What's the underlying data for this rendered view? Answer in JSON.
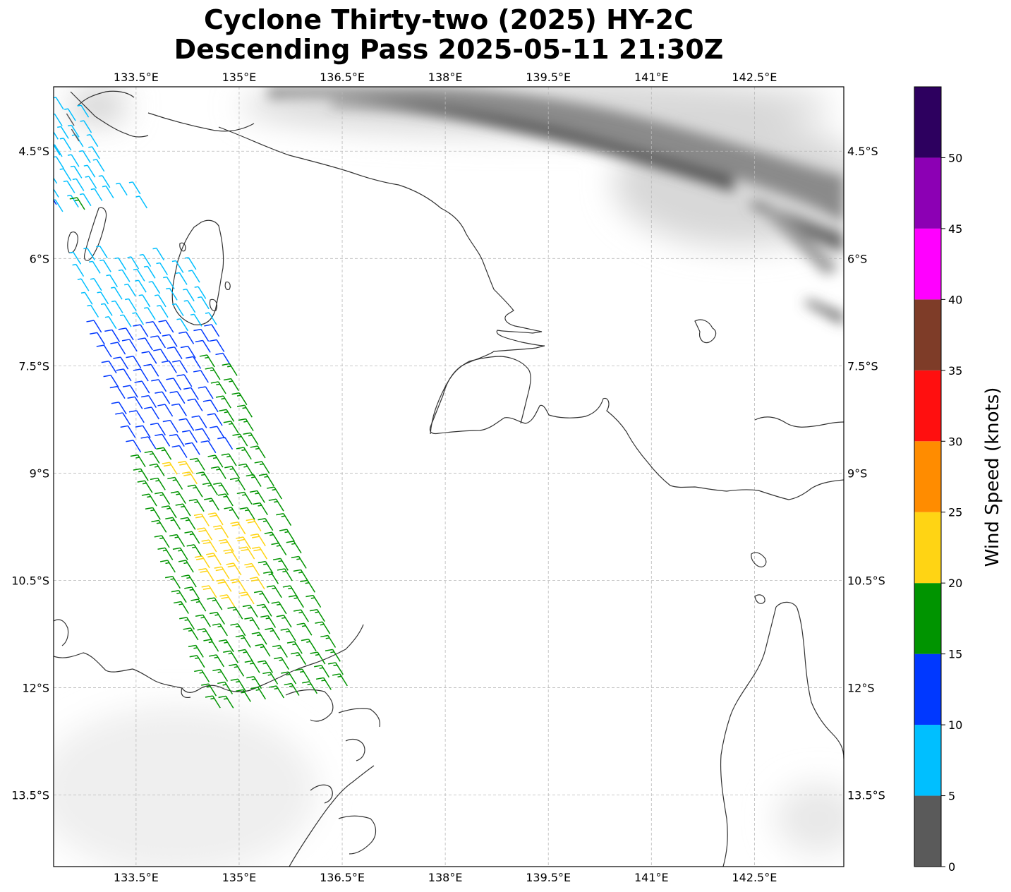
{
  "title": {
    "line1": "Cyclone Thirty-two (2025) HY-2C",
    "line2": "Descending Pass 2025-05-11 21:30Z"
  },
  "map": {
    "lon_range": [
      132.3,
      143.8
    ],
    "lat_range": [
      -14.5,
      -3.6
    ],
    "lon_ticks": [
      {
        "value": 133.5,
        "label": "133.5°E"
      },
      {
        "value": 135.0,
        "label": "135°E"
      },
      {
        "value": 136.5,
        "label": "136.5°E"
      },
      {
        "value": 138.0,
        "label": "138°E"
      },
      {
        "value": 139.5,
        "label": "139.5°E"
      },
      {
        "value": 141.0,
        "label": "141°E"
      },
      {
        "value": 142.5,
        "label": "142.5°E"
      }
    ],
    "lat_ticks": [
      {
        "value": -4.5,
        "label": "4.5°S"
      },
      {
        "value": -6.0,
        "label": "6°S"
      },
      {
        "value": -7.5,
        "label": "7.5°S"
      },
      {
        "value": -9.0,
        "label": "9°S"
      },
      {
        "value": -10.5,
        "label": "10.5°S"
      },
      {
        "value": -12.0,
        "label": "12°S"
      },
      {
        "value": -13.5,
        "label": "13.5°S"
      }
    ],
    "grid": true,
    "basemap": "grayscale terrain with coastlines",
    "coastline_color": "#333333"
  },
  "wind": {
    "units": "knots",
    "direction": "southeasterly",
    "swath_corners": [
      [
        -4.2,
        132.1
      ],
      [
        -3.9,
        133.5
      ],
      [
        -12.0,
        136.6
      ],
      [
        -12.3,
        134.7
      ]
    ]
  },
  "colorbar": {
    "label": "Wind Speed (knots)",
    "ticks": [
      "0",
      "5",
      "10",
      "15",
      "20",
      "25",
      "30",
      "35",
      "40",
      "45",
      "50"
    ],
    "bins": [
      {
        "min": 0,
        "max": 5,
        "color": "#5a5a5a"
      },
      {
        "min": 5,
        "max": 10,
        "color": "#00bfff"
      },
      {
        "min": 10,
        "max": 15,
        "color": "#0038ff"
      },
      {
        "min": 15,
        "max": 20,
        "color": "#009400"
      },
      {
        "min": 20,
        "max": 25,
        "color": "#ffd414"
      },
      {
        "min": 25,
        "max": 30,
        "color": "#ff8c00"
      },
      {
        "min": 30,
        "max": 35,
        "color": "#ff0f0f"
      },
      {
        "min": 35,
        "max": 40,
        "color": "#7e3c28"
      },
      {
        "min": 40,
        "max": 45,
        "color": "#ff00ff"
      },
      {
        "min": 45,
        "max": 50,
        "color": "#8c00b4"
      },
      {
        "min": 50,
        "max": 55,
        "color": "#2d005f"
      }
    ]
  }
}
